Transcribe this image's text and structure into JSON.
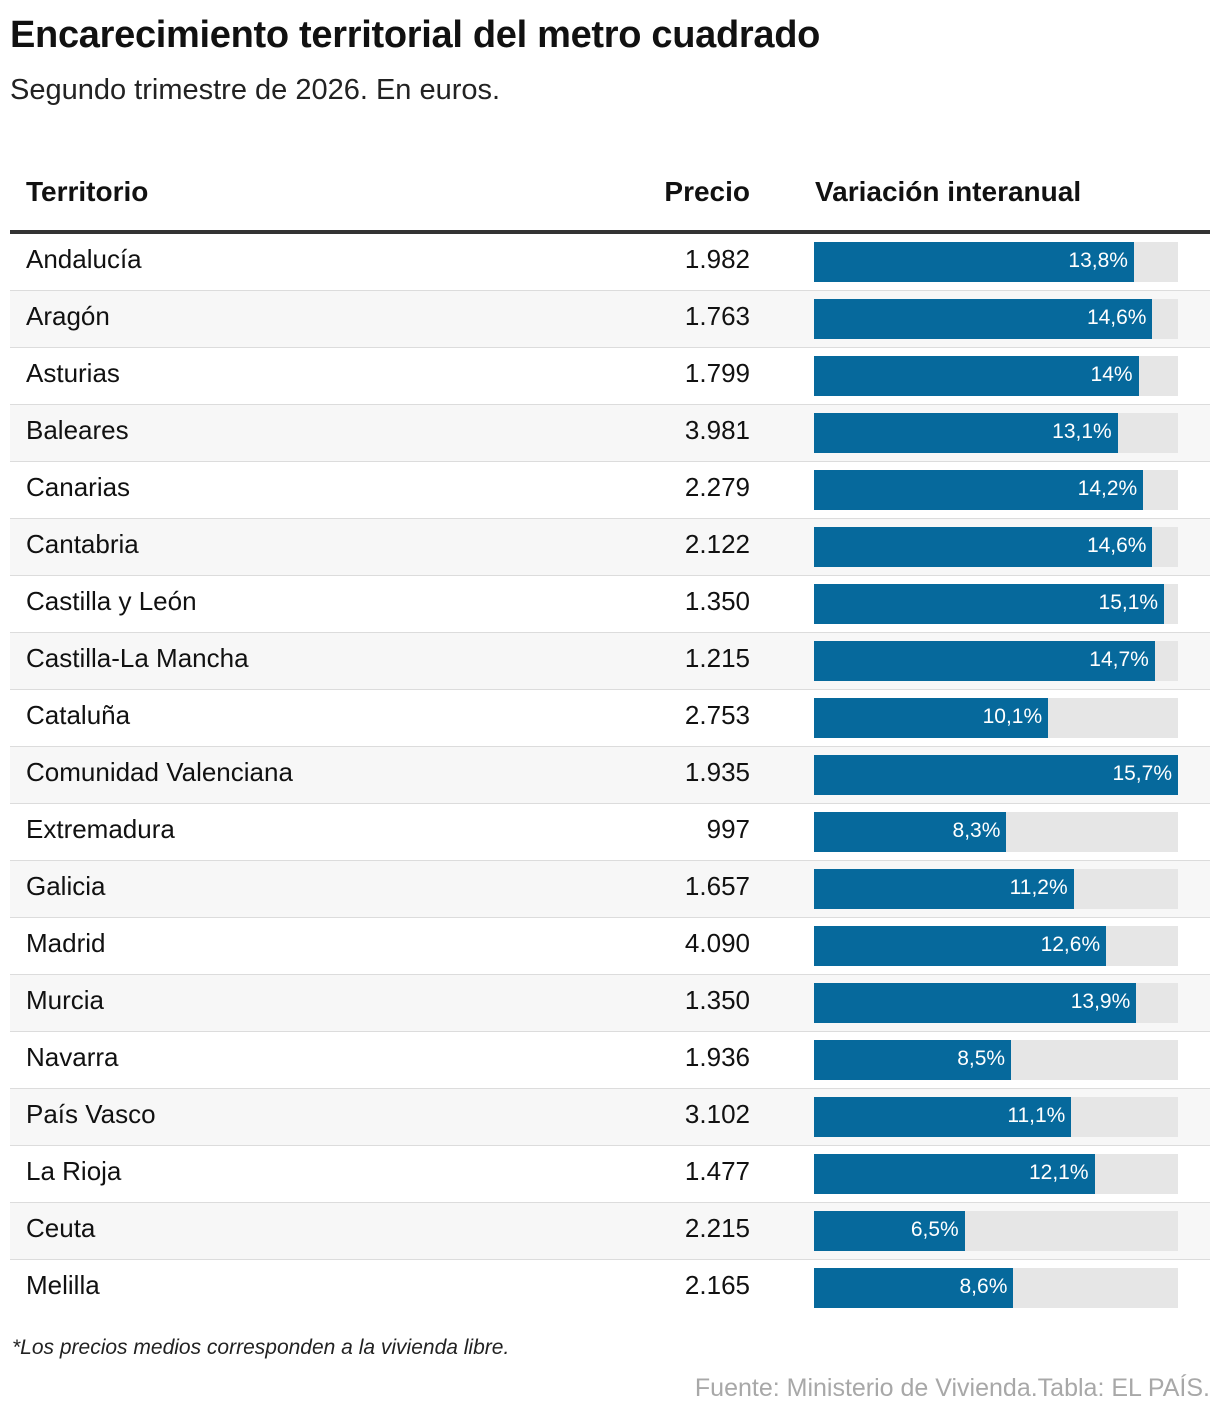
{
  "header": {
    "title": "Encarecimiento territorial del metro cuadrado",
    "subtitle": "Segundo trimestre de 2026. En euros."
  },
  "columns": {
    "territory": "Territorio",
    "price": "Precio",
    "variation": "Variación interanual"
  },
  "chart_data": {
    "type": "table",
    "title": "Encarecimiento territorial del metro cuadrado",
    "subtitle": "Segundo trimestre de 2026. En euros.",
    "columns": [
      "Territorio",
      "Precio",
      "Variación interanual"
    ],
    "variation_max": 15.7,
    "rows": [
      {
        "territory": "Andalucía",
        "price": "1.982",
        "variation": 13.8,
        "variation_label": "13,8%"
      },
      {
        "territory": "Aragón",
        "price": "1.763",
        "variation": 14.6,
        "variation_label": "14,6%"
      },
      {
        "territory": "Asturias",
        "price": "1.799",
        "variation": 14.0,
        "variation_label": "14%"
      },
      {
        "territory": "Baleares",
        "price": "3.981",
        "variation": 13.1,
        "variation_label": "13,1%"
      },
      {
        "territory": "Canarias",
        "price": "2.279",
        "variation": 14.2,
        "variation_label": "14,2%"
      },
      {
        "territory": "Cantabria",
        "price": "2.122",
        "variation": 14.6,
        "variation_label": "14,6%"
      },
      {
        "territory": "Castilla y León",
        "price": "1.350",
        "variation": 15.1,
        "variation_label": "15,1%"
      },
      {
        "territory": "Castilla-La Mancha",
        "price": "1.215",
        "variation": 14.7,
        "variation_label": "14,7%"
      },
      {
        "territory": "Cataluña",
        "price": "2.753",
        "variation": 10.1,
        "variation_label": "10,1%"
      },
      {
        "territory": "Comunidad Valenciana",
        "price": "1.935",
        "variation": 15.7,
        "variation_label": "15,7%"
      },
      {
        "territory": "Extremadura",
        "price": "997",
        "variation": 8.3,
        "variation_label": "8,3%"
      },
      {
        "territory": "Galicia",
        "price": "1.657",
        "variation": 11.2,
        "variation_label": "11,2%"
      },
      {
        "territory": "Madrid",
        "price": "4.090",
        "variation": 12.6,
        "variation_label": "12,6%"
      },
      {
        "territory": "Murcia",
        "price": "1.350",
        "variation": 13.9,
        "variation_label": "13,9%"
      },
      {
        "territory": "Navarra",
        "price": "1.936",
        "variation": 8.5,
        "variation_label": "8,5%"
      },
      {
        "territory": "País Vasco",
        "price": "3.102",
        "variation": 11.1,
        "variation_label": "11,1%"
      },
      {
        "territory": "La Rioja",
        "price": "1.477",
        "variation": 12.1,
        "variation_label": "12,1%"
      },
      {
        "territory": "Ceuta",
        "price": "2.215",
        "variation": 6.5,
        "variation_label": "6,5%"
      },
      {
        "territory": "Melilla",
        "price": "2.165",
        "variation": 8.6,
        "variation_label": "8,6%"
      }
    ],
    "bar_color": "#06699c",
    "track_color": "#e6e6e6"
  },
  "footer": {
    "note": "*Los precios medios corresponden a la vivienda libre.",
    "source": "Fuente: Ministerio de Vivienda.Tabla: EL PAÍS."
  }
}
